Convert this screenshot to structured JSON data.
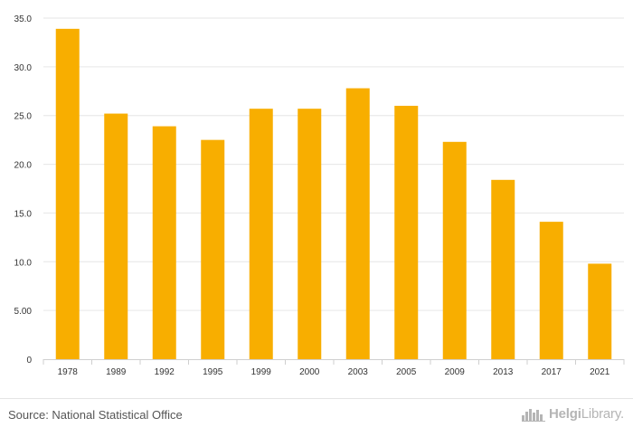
{
  "chart_data": {
    "type": "bar",
    "categories": [
      "1978",
      "1989",
      "1992",
      "1995",
      "1999",
      "2000",
      "2003",
      "2005",
      "2009",
      "2013",
      "2017",
      "2021"
    ],
    "values": [
      33.9,
      25.2,
      23.9,
      22.5,
      25.7,
      25.7,
      27.8,
      26.0,
      22.3,
      18.4,
      14.1,
      9.8
    ],
    "y_ticks": [
      "0",
      "5.00",
      "10.0",
      "15.0",
      "20.0",
      "25.0",
      "30.0",
      "35.0"
    ],
    "ylim": [
      0,
      35
    ],
    "grid": true,
    "bar_color": "#f8ae00"
  },
  "footer": {
    "source": "Source: National Statistical Office",
    "logo_bold": "Helgi",
    "logo_light": "Library."
  },
  "colors": {
    "grid": "#e6e6e6",
    "tick_text": "#333333",
    "logo": "#b5b5b5"
  }
}
